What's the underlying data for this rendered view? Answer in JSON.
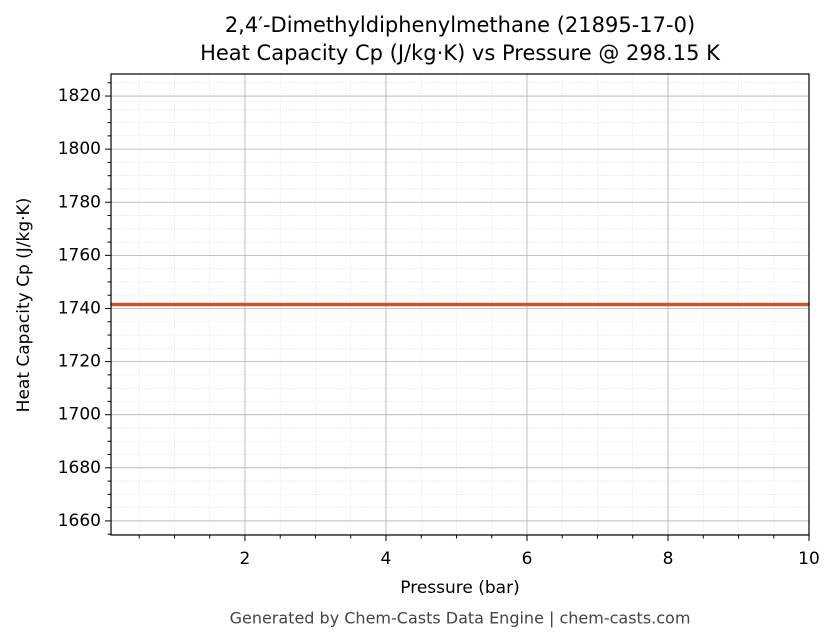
{
  "chart_data": {
    "type": "line",
    "title": "2,4′-Dimethyldiphenylmethane (21895-17-0)",
    "subtitle": "Heat Capacity Cp (J/kg·K) vs Pressure @ 298.15 K",
    "x_label": "Pressure (bar)",
    "y_label": "Heat Capacity Cp (J/kg·K)",
    "footer": "Generated by Chem-Casts Data Engine | chem-casts.com",
    "x": [
      0.1,
      10
    ],
    "series": [
      {
        "name": "Cp",
        "color": "#c8562a",
        "values": [
          1741.5,
          1741.5
        ]
      }
    ],
    "xlim": [
      0.1,
      10
    ],
    "xticks": [
      2,
      4,
      6,
      8,
      10
    ],
    "xminorticks": [
      0.5,
      1,
      1.5,
      2.5,
      3,
      3.5,
      4.5,
      5,
      5.5,
      6.5,
      7,
      7.5,
      8.5,
      9,
      9.5
    ],
    "ylim": [
      1654.7,
      1828.3
    ],
    "yticks": [
      1660,
      1680,
      1700,
      1720,
      1740,
      1760,
      1780,
      1800,
      1820
    ],
    "yminorticks": [
      1655,
      1665,
      1670,
      1675,
      1685,
      1690,
      1695,
      1705,
      1710,
      1715,
      1725,
      1730,
      1735,
      1745,
      1750,
      1755,
      1765,
      1770,
      1775,
      1785,
      1790,
      1795,
      1805,
      1810,
      1815,
      1825
    ],
    "grid": true
  }
}
